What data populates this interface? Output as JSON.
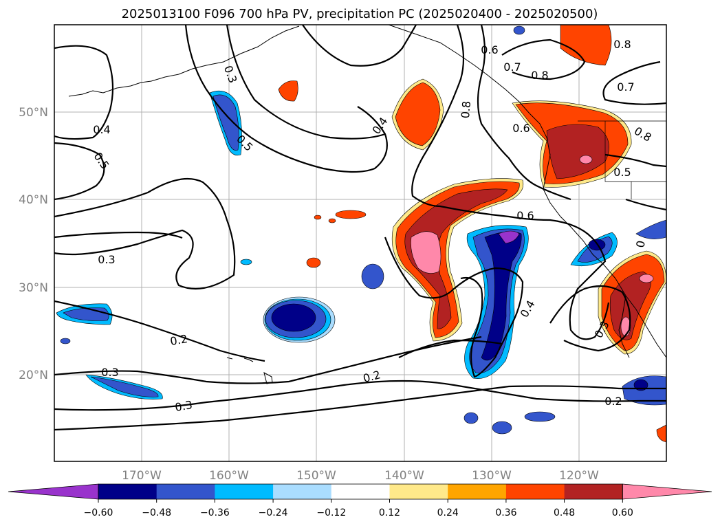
{
  "title": "2025013100 F096 700 hPa PV, precipitation PC (2025020400 - 2025020500)",
  "map": {
    "lat_labels": [
      "50°N",
      "40°N",
      "30°N",
      "20°N"
    ],
    "lon_labels": [
      "170°W",
      "160°W",
      "150°W",
      "140°W",
      "130°W",
      "120°W"
    ],
    "grid_color": "#b0b0b0",
    "coastline_color": "#000000"
  },
  "contour_labels": [
    {
      "id": "c1",
      "text": "0.6"
    },
    {
      "id": "c2",
      "text": "0.7"
    },
    {
      "id": "c3",
      "text": "0.8"
    },
    {
      "id": "c4",
      "text": "0.8"
    },
    {
      "id": "c5",
      "text": "0.7"
    },
    {
      "id": "c6",
      "text": "0.8"
    },
    {
      "id": "c7",
      "text": "0.3"
    },
    {
      "id": "c8",
      "text": "0.4"
    },
    {
      "id": "c9",
      "text": "0.5"
    },
    {
      "id": "c10",
      "text": "0.4"
    },
    {
      "id": "c11",
      "text": "0.5"
    },
    {
      "id": "c12",
      "text": "0.6"
    },
    {
      "id": "c13",
      "text": "0.8"
    },
    {
      "id": "c14",
      "text": "0.5"
    },
    {
      "id": "c15",
      "text": "0.6"
    },
    {
      "id": "c16",
      "text": "0.3"
    },
    {
      "id": "c17",
      "text": "0.4"
    },
    {
      "id": "c18",
      "text": "0.2"
    },
    {
      "id": "c19",
      "text": "0.3"
    },
    {
      "id": "c20",
      "text": "0.2"
    },
    {
      "id": "c21",
      "text": "0.3"
    },
    {
      "id": "c22",
      "text": "0.3"
    },
    {
      "id": "c23",
      "text": "0.2"
    },
    {
      "id": "c24",
      "text": "0"
    }
  ],
  "colorbar": {
    "ticks": [
      "−0.60",
      "−0.48",
      "−0.36",
      "−0.24",
      "−0.12",
      "0.12",
      "0.24",
      "0.36",
      "0.48",
      "0.60"
    ],
    "colors": [
      "#9933cc",
      "#000088",
      "#3355cc",
      "#00bbff",
      "#aaddff",
      "#ffffff",
      "#ffe98a",
      "#ffa500",
      "#ff4400",
      "#b22222",
      "#ff88aa",
      "#ff88aa"
    ]
  },
  "precip_colors": {
    "deep_blue": "#000088",
    "mid_blue": "#3355cc",
    "cyan": "#00bbff",
    "light_blue": "#aaddff",
    "purple": "#9933cc",
    "yellow": "#ffe98a",
    "orange_red": "#ff4400",
    "dark_red": "#b22222",
    "pink": "#ff88aa"
  }
}
